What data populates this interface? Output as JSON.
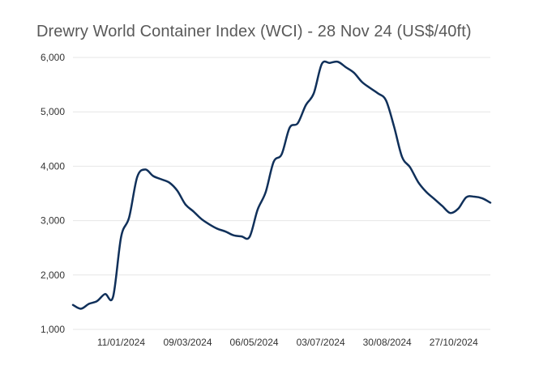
{
  "chart_data": {
    "type": "line",
    "title": "Drewry World Container Index (WCI) - 28 Nov 24 (US$/40ft)",
    "xlabel": "",
    "ylabel": "",
    "ylim": [
      1000,
      6000
    ],
    "yticks": [
      1000,
      2000,
      3000,
      4000,
      5000,
      6000
    ],
    "ytick_labels": [
      "1,000",
      "2,000",
      "3,000",
      "4,000",
      "5,000",
      "6,000"
    ],
    "x_tick_labels": [
      "11/01/2024",
      "09/03/2024",
      "06/05/2024",
      "03/07/2024",
      "30/08/2024",
      "27/10/2024"
    ],
    "x_tick_dates": [
      "2024-01-11",
      "2024-03-09",
      "2024-05-06",
      "2024-07-03",
      "2024-08-30",
      "2024-10-27"
    ],
    "x_range": [
      "2023-11-30",
      "2024-11-28"
    ],
    "grid": true,
    "line_color": "#10305a",
    "series": [
      {
        "x": [
          "2023-11-30",
          "2023-12-07",
          "2023-12-14",
          "2023-12-21",
          "2023-12-28",
          "2024-01-04",
          "2024-01-11",
          "2024-01-18",
          "2024-01-25",
          "2024-02-01",
          "2024-02-08",
          "2024-02-15",
          "2024-02-22",
          "2024-02-29",
          "2024-03-07",
          "2024-03-14",
          "2024-03-21",
          "2024-03-28",
          "2024-04-04",
          "2024-04-11",
          "2024-04-18",
          "2024-04-25",
          "2024-05-02",
          "2024-05-09",
          "2024-05-16",
          "2024-05-23",
          "2024-05-30",
          "2024-06-06",
          "2024-06-13",
          "2024-06-20",
          "2024-06-27",
          "2024-07-04",
          "2024-07-11",
          "2024-07-18",
          "2024-07-25",
          "2024-08-01",
          "2024-08-08",
          "2024-08-15",
          "2024-08-22",
          "2024-08-29",
          "2024-09-05",
          "2024-09-12",
          "2024-09-19",
          "2024-09-26",
          "2024-10-03",
          "2024-10-10",
          "2024-10-17",
          "2024-10-24",
          "2024-10-31",
          "2024-11-07",
          "2024-11-14",
          "2024-11-21",
          "2024-11-28"
        ],
        "values": [
          1450,
          1380,
          1470,
          1520,
          1650,
          1600,
          2700,
          3060,
          3800,
          3940,
          3820,
          3760,
          3700,
          3550,
          3300,
          3170,
          3030,
          2930,
          2850,
          2800,
          2730,
          2710,
          2700,
          3200,
          3520,
          4080,
          4220,
          4710,
          4790,
          5120,
          5340,
          5880,
          5900,
          5920,
          5820,
          5720,
          5550,
          5440,
          5340,
          5210,
          4730,
          4170,
          3980,
          3710,
          3530,
          3400,
          3270,
          3140,
          3220,
          3430,
          3440,
          3410,
          3330
        ]
      }
    ]
  }
}
